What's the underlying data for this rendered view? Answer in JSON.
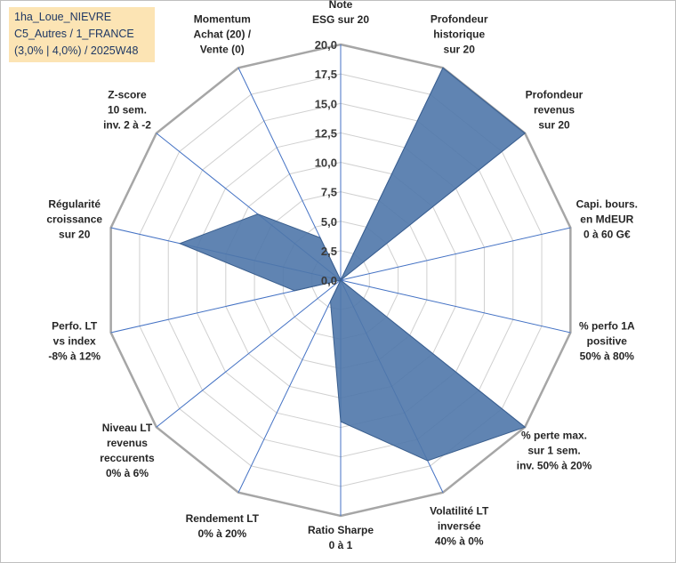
{
  "title_lines": [
    "1ha_Loue_NIEVRE",
    "C5_Autres / 1_FRANCE",
    "(3,0% | 4,0%) / 2025W48"
  ],
  "chart_data": {
    "type": "radar",
    "rmin": 0,
    "rmax": 20,
    "tick_step": 2.5,
    "tick_labels": [
      "0,0",
      "2,5",
      "5,0",
      "7,5",
      "10,0",
      "12,5",
      "15,0",
      "17,5",
      "20,0"
    ],
    "axes": [
      {
        "label": [
          "Note",
          "ESG sur 20"
        ],
        "value": 0
      },
      {
        "label": [
          "Profondeur",
          "historique",
          "sur 20"
        ],
        "value": 20
      },
      {
        "label": [
          "Profondeur",
          "revenus",
          "sur 20"
        ],
        "value": 20
      },
      {
        "label": [
          "Capi. bours.",
          "en MdEUR",
          "0 à 60 G€"
        ],
        "value": 0
      },
      {
        "label": [
          "% perfo 1A",
          "positive",
          "50% à 80%"
        ],
        "value": 0
      },
      {
        "label": [
          "% perte max.",
          "sur 1 sem.",
          "inv. 50% à 20%"
        ],
        "value": 20
      },
      {
        "label": [
          "Volatilité LT",
          "inversée",
          "40% à 0%"
        ],
        "value": 17
      },
      {
        "label": [
          "Ratio Sharpe",
          "0 à 1"
        ],
        "value": 12
      },
      {
        "label": [
          "Rendement LT",
          "0% à 20%"
        ],
        "value": 2
      },
      {
        "label": [
          "Niveau LT",
          "revenus",
          "reccurents",
          "0% à 6%"
        ],
        "value": 0
      },
      {
        "label": [
          "Perfo. LT",
          "vs index",
          "-8% à 12%"
        ],
        "value": 4
      },
      {
        "label": [
          "Régularité",
          "croissance",
          "sur 20"
        ],
        "value": 14
      },
      {
        "label": [
          "Z-score",
          "10 sem.",
          "inv. 2 à -2"
        ],
        "value": 9
      },
      {
        "label": [
          "Momentum",
          "Achat (20) /",
          "Vente (0)"
        ],
        "value": 4
      }
    ],
    "series": [
      {
        "name": "1ha_Loue_NIEVRE",
        "color": "#4f77aa"
      }
    ],
    "grid_color": "#d0d0d0",
    "axis_color": "#4472c4"
  }
}
